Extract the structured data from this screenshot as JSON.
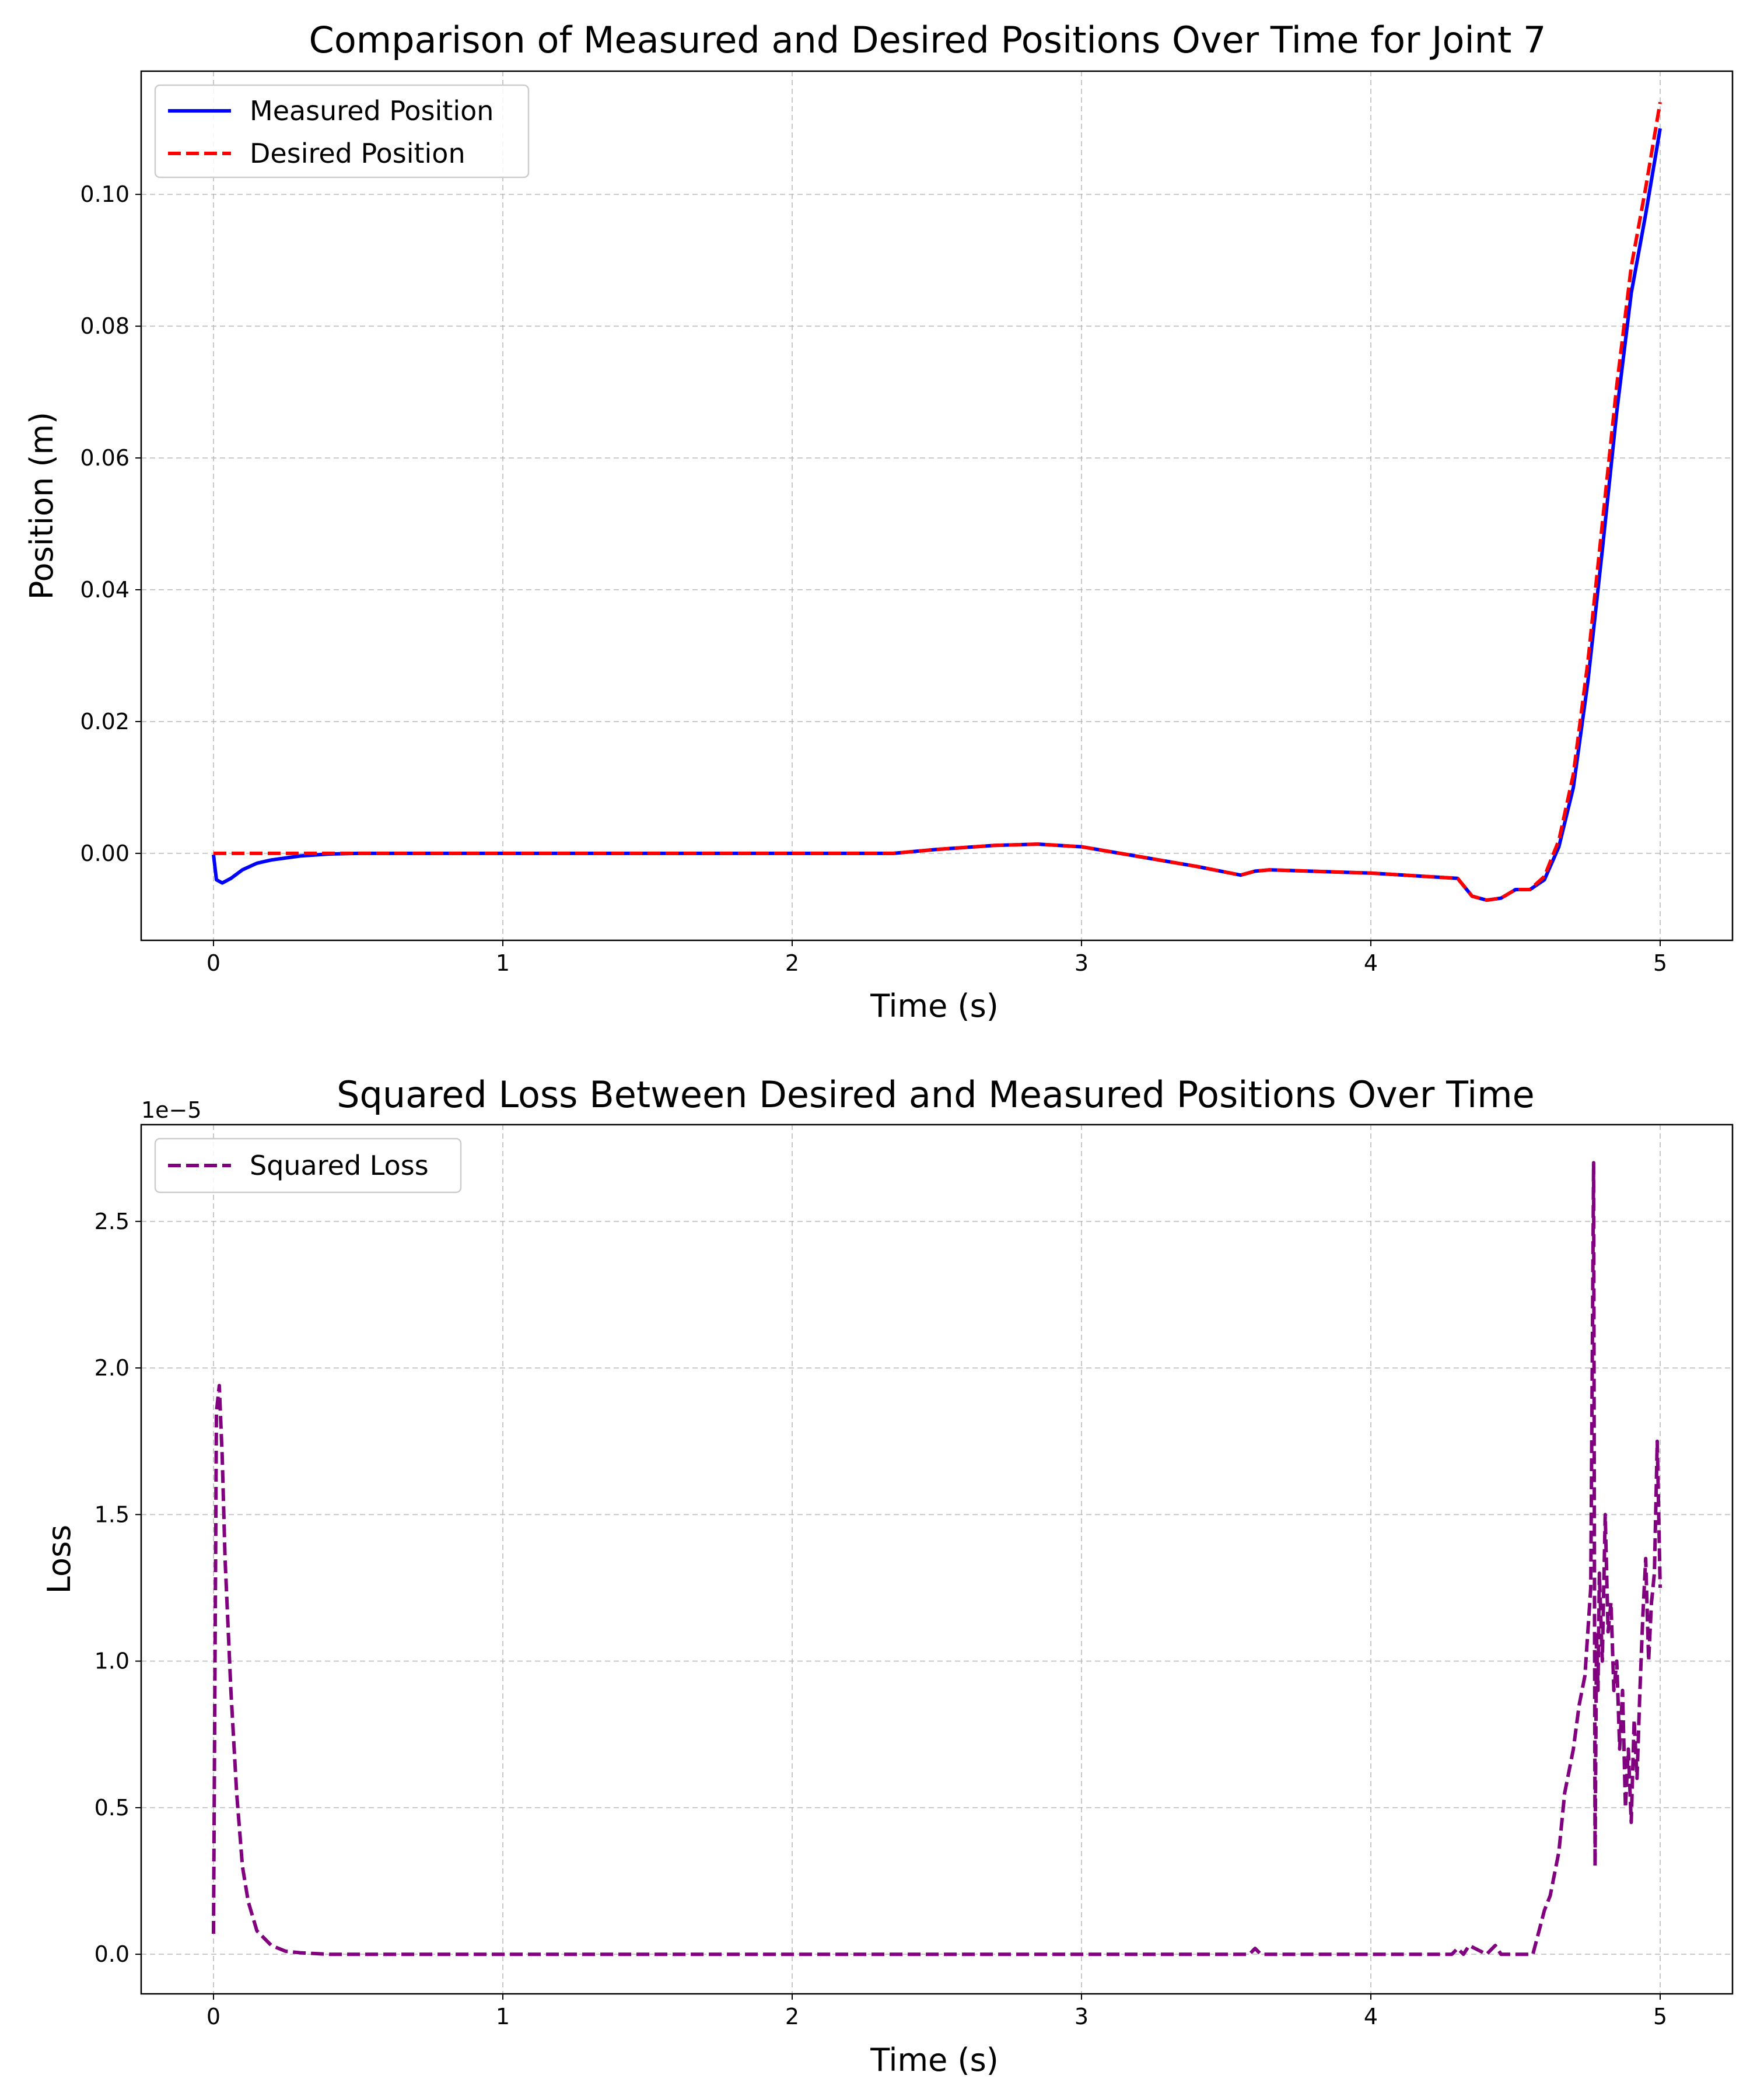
{
  "chart_data": [
    {
      "type": "line",
      "title": "Comparison of Measured and Desired Positions Over Time for Joint 7",
      "xlabel": "Time (s)",
      "ylabel": "Position (m)",
      "xlim": [
        -0.25,
        5.25
      ],
      "ylim": [
        -0.0132,
        0.1187
      ],
      "xticks": [
        0,
        1,
        2,
        3,
        4,
        5
      ],
      "xtick_labels": [
        "0",
        "1",
        "2",
        "3",
        "4",
        "5"
      ],
      "yticks": [
        0.0,
        0.02,
        0.04,
        0.06,
        0.08,
        0.1
      ],
      "ytick_labels": [
        "0.00",
        "0.02",
        "0.04",
        "0.06",
        "0.08",
        "0.10"
      ],
      "grid": true,
      "legend_position": "top-left",
      "series": [
        {
          "name": "Measured Position",
          "color": "#0000ff",
          "style": "solid",
          "x": [
            0.0,
            0.01,
            0.03,
            0.06,
            0.1,
            0.15,
            0.2,
            0.3,
            0.4,
            0.5,
            1.0,
            1.5,
            2.0,
            2.35,
            2.5,
            2.7,
            2.85,
            3.0,
            3.2,
            3.4,
            3.55,
            3.6,
            3.65,
            4.0,
            4.3,
            4.35,
            4.4,
            4.45,
            4.5,
            4.55,
            4.6,
            4.65,
            4.7,
            4.75,
            4.8,
            4.85,
            4.9,
            4.95,
            5.0
          ],
          "y": [
            -0.0002,
            -0.004,
            -0.0045,
            -0.0038,
            -0.0025,
            -0.0015,
            -0.001,
            -0.0004,
            -0.0001,
            0.0,
            0.0,
            0.0,
            0.0,
            0.0,
            0.0006,
            0.0012,
            0.0014,
            0.001,
            -0.0005,
            -0.002,
            -0.0033,
            -0.0027,
            -0.0025,
            -0.003,
            -0.0038,
            -0.0065,
            -0.0071,
            -0.0068,
            -0.0055,
            -0.0055,
            -0.004,
            0.001,
            0.01,
            0.026,
            0.046,
            0.067,
            0.085,
            0.097,
            0.11
          ]
        },
        {
          "name": "Desired Position",
          "color": "#ff0000",
          "style": "dashed",
          "x": [
            0.0,
            0.5,
            1.0,
            1.5,
            2.0,
            2.35,
            2.5,
            2.7,
            2.85,
            3.0,
            3.2,
            3.4,
            3.55,
            3.6,
            3.65,
            4.0,
            4.3,
            4.35,
            4.4,
            4.45,
            4.5,
            4.55,
            4.6,
            4.65,
            4.7,
            4.75,
            4.8,
            4.85,
            4.9,
            4.95,
            5.0
          ],
          "y": [
            0.0,
            0.0,
            0.0,
            0.0,
            0.0,
            0.0,
            0.0006,
            0.0012,
            0.0014,
            0.001,
            -0.0005,
            -0.002,
            -0.0033,
            -0.0027,
            -0.0025,
            -0.003,
            -0.0038,
            -0.0065,
            -0.0071,
            -0.0068,
            -0.0055,
            -0.0055,
            -0.0035,
            0.002,
            0.012,
            0.029,
            0.05,
            0.071,
            0.089,
            0.101,
            0.114
          ]
        }
      ]
    },
    {
      "type": "line",
      "title": "Squared Loss Between Desired and Measured Positions Over Time",
      "xlabel": "Time (s)",
      "ylabel": "Loss",
      "offset_label": "1e−5",
      "xlim": [
        -0.25,
        5.25
      ],
      "ylim": [
        -0.135,
        2.83
      ],
      "xticks": [
        0,
        1,
        2,
        3,
        4,
        5
      ],
      "xtick_labels": [
        "0",
        "1",
        "2",
        "3",
        "4",
        "5"
      ],
      "yticks": [
        0.0,
        0.5,
        1.0,
        1.5,
        2.0,
        2.5
      ],
      "ytick_labels": [
        "0.0",
        "0.5",
        "1.0",
        "1.5",
        "2.0",
        "2.5"
      ],
      "grid": true,
      "legend_position": "top-left",
      "series": [
        {
          "name": "Squared Loss",
          "color": "#800080",
          "style": "dashed",
          "x": [
            0.0,
            0.01,
            0.02,
            0.03,
            0.04,
            0.06,
            0.08,
            0.1,
            0.12,
            0.15,
            0.2,
            0.25,
            0.3,
            0.4,
            1.0,
            2.0,
            3.0,
            3.58,
            3.6,
            3.62,
            4.0,
            4.28,
            4.3,
            4.32,
            4.34,
            4.4,
            4.43,
            4.45,
            4.5,
            4.56,
            4.6,
            4.62,
            4.65,
            4.67,
            4.7,
            4.72,
            4.74,
            4.76,
            4.77,
            4.775,
            4.78,
            4.785,
            4.79,
            4.8,
            4.81,
            4.82,
            4.83,
            4.84,
            4.85,
            4.86,
            4.87,
            4.88,
            4.89,
            4.9,
            4.91,
            4.92,
            4.93,
            4.94,
            4.95,
            4.96,
            4.97,
            4.98,
            4.99,
            5.0
          ],
          "y": [
            0.07,
            1.85,
            1.94,
            1.7,
            1.35,
            0.9,
            0.55,
            0.3,
            0.18,
            0.08,
            0.03,
            0.01,
            0.005,
            0.0,
            0.0,
            0.0,
            0.0,
            0.0,
            0.02,
            0.0,
            0.0,
            0.0,
            0.02,
            0.0,
            0.03,
            0.0,
            0.03,
            0.0,
            0.0,
            0.0,
            0.15,
            0.2,
            0.35,
            0.55,
            0.7,
            0.85,
            0.95,
            1.25,
            2.7,
            0.3,
            1.1,
            0.9,
            1.3,
            1.0,
            1.5,
            1.1,
            1.2,
            0.9,
            1.0,
            0.7,
            0.9,
            0.5,
            0.7,
            0.45,
            0.8,
            0.6,
            0.9,
            1.15,
            1.35,
            1.0,
            1.2,
            1.3,
            1.75,
            1.25
          ]
        }
      ]
    }
  ]
}
